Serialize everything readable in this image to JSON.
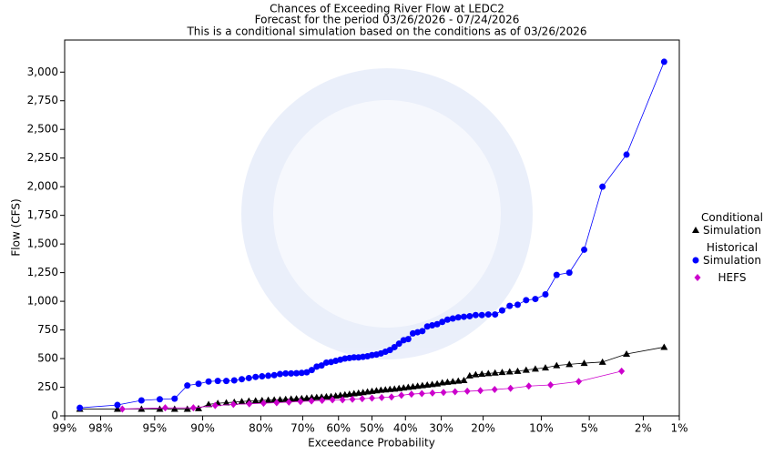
{
  "chart_data": {
    "type": "line",
    "title": "Chances of Exceeding River Flow at LEDC2",
    "subtitle": "Forecast for the period 03/26/2026 - 07/24/2026",
    "note": "This is a conditional simulation based on the conditions as of 03/26/2026",
    "x_label": "Exceedance Probability",
    "y_label": "Flow (CFS)",
    "xscale": "probit",
    "xlim": [
      99,
      1
    ],
    "xticks": [
      {
        "value": 99,
        "label": "99%"
      },
      {
        "value": 98,
        "label": "98%"
      },
      {
        "value": 95,
        "label": "95%"
      },
      {
        "value": 90,
        "label": "90%"
      },
      {
        "value": 80,
        "label": "80%"
      },
      {
        "value": 70,
        "label": "70%"
      },
      {
        "value": 60,
        "label": "60%"
      },
      {
        "value": 50,
        "label": "50%"
      },
      {
        "value": 40,
        "label": "40%"
      },
      {
        "value": 30,
        "label": "30%"
      },
      {
        "value": 20,
        "label": "20%"
      },
      {
        "value": 10,
        "label": "10%"
      },
      {
        "value": 5,
        "label": "5%"
      },
      {
        "value": 2,
        "label": "2%"
      },
      {
        "value": 1,
        "label": "1%"
      }
    ],
    "ylim": [
      0,
      3280
    ],
    "yticks": [
      0,
      250,
      500,
      750,
      {
        "value": 1000,
        "label": "1,000"
      },
      {
        "value": 1250,
        "label": "1,250"
      },
      {
        "value": 1500,
        "label": "1,500"
      },
      {
        "value": 1750,
        "label": "1,750"
      },
      {
        "value": 2000,
        "label": "2,000"
      },
      {
        "value": 2250,
        "label": "2,250"
      },
      {
        "value": 2500,
        "label": "2,500"
      },
      {
        "value": 2750,
        "label": "2,750"
      },
      {
        "value": 3000,
        "label": "3,000"
      }
    ],
    "legend": "right",
    "series": [
      {
        "name": "Conditional Simulation",
        "color": "#000000",
        "marker": "triangle",
        "x": [
          98.65,
          97.3,
          95.95,
          94.59,
          93.24,
          91.89,
          90.54,
          89.19,
          87.84,
          86.49,
          85.14,
          83.78,
          82.43,
          81.08,
          79.73,
          78.38,
          77.03,
          75.68,
          74.32,
          72.97,
          71.62,
          70.27,
          68.92,
          67.57,
          66.22,
          64.86,
          63.51,
          62.16,
          60.81,
          59.46,
          58.11,
          56.76,
          55.41,
          54.05,
          52.7,
          51.35,
          50.0,
          48.65,
          47.3,
          45.95,
          44.59,
          43.24,
          41.89,
          40.54,
          39.19,
          37.84,
          36.49,
          35.14,
          33.78,
          32.43,
          31.08,
          29.73,
          28.38,
          27.03,
          25.68,
          24.32,
          22.97,
          21.62,
          20.27,
          18.92,
          17.57,
          16.22,
          14.86,
          13.51,
          12.16,
          10.81,
          9.46,
          8.11,
          6.76,
          5.41,
          4.05,
          2.7,
          1.35
        ],
        "values": [
          60,
          60,
          60,
          60,
          60,
          60,
          65,
          100,
          110,
          115,
          120,
          125,
          130,
          132,
          135,
          138,
          140,
          142,
          145,
          148,
          150,
          152,
          155,
          160,
          162,
          165,
          168,
          170,
          175,
          180,
          185,
          190,
          195,
          200,
          205,
          210,
          215,
          220,
          225,
          228,
          232,
          235,
          240,
          245,
          250,
          255,
          260,
          265,
          270,
          275,
          280,
          290,
          295,
          300,
          305,
          310,
          350,
          360,
          365,
          370,
          375,
          380,
          385,
          390,
          400,
          410,
          420,
          440,
          450,
          460,
          470,
          540,
          600
        ]
      },
      {
        "name": "Historical Simulation",
        "color": "#0000ff",
        "marker": "circle",
        "x": [
          98.65,
          97.3,
          95.95,
          94.59,
          93.24,
          91.89,
          90.54,
          89.19,
          87.84,
          86.49,
          85.14,
          83.78,
          82.43,
          81.08,
          79.73,
          78.38,
          77.03,
          75.68,
          74.32,
          72.97,
          71.62,
          70.27,
          68.92,
          67.57,
          66.22,
          64.86,
          63.51,
          62.16,
          60.81,
          59.46,
          58.11,
          56.76,
          55.41,
          54.05,
          52.7,
          51.35,
          50.0,
          48.65,
          47.3,
          45.95,
          44.59,
          43.24,
          41.89,
          40.54,
          39.19,
          37.84,
          36.49,
          35.14,
          33.78,
          32.43,
          31.08,
          29.73,
          28.38,
          27.03,
          25.68,
          24.32,
          22.97,
          21.62,
          20.27,
          18.92,
          17.57,
          16.22,
          14.86,
          13.51,
          12.16,
          10.81,
          9.46,
          8.11,
          6.76,
          5.41,
          4.05,
          2.7,
          1.35
        ],
        "values": [
          70,
          95,
          135,
          145,
          150,
          265,
          280,
          300,
          305,
          305,
          310,
          320,
          330,
          340,
          345,
          350,
          355,
          365,
          370,
          370,
          372,
          375,
          380,
          400,
          430,
          440,
          465,
          470,
          480,
          490,
          500,
          505,
          510,
          510,
          515,
          520,
          530,
          535,
          545,
          560,
          575,
          600,
          630,
          660,
          670,
          720,
          730,
          740,
          780,
          790,
          800,
          820,
          840,
          850,
          860,
          865,
          870,
          880,
          880,
          885,
          885,
          920,
          960,
          970,
          1010,
          1020,
          1060,
          1230,
          1250,
          1450,
          2000,
          2280,
          3090
        ]
      },
      {
        "name": "HEFS",
        "color": "#cc00cc",
        "marker": "diamond",
        "x": [
          97.06,
          94.12,
          91.18,
          88.24,
          85.29,
          82.35,
          79.41,
          76.47,
          73.53,
          70.59,
          67.65,
          64.71,
          61.76,
          58.82,
          55.88,
          52.94,
          50.0,
          47.06,
          44.12,
          41.18,
          38.24,
          35.29,
          32.35,
          29.41,
          26.47,
          23.53,
          20.59,
          17.65,
          14.71,
          11.76,
          8.82,
          5.88,
          2.94
        ],
        "values": [
          60,
          70,
          70,
          90,
          100,
          105,
          110,
          115,
          120,
          125,
          130,
          135,
          140,
          140,
          145,
          150,
          155,
          160,
          165,
          180,
          190,
          195,
          200,
          205,
          210,
          215,
          220,
          230,
          240,
          260,
          270,
          300,
          390
        ]
      }
    ]
  }
}
